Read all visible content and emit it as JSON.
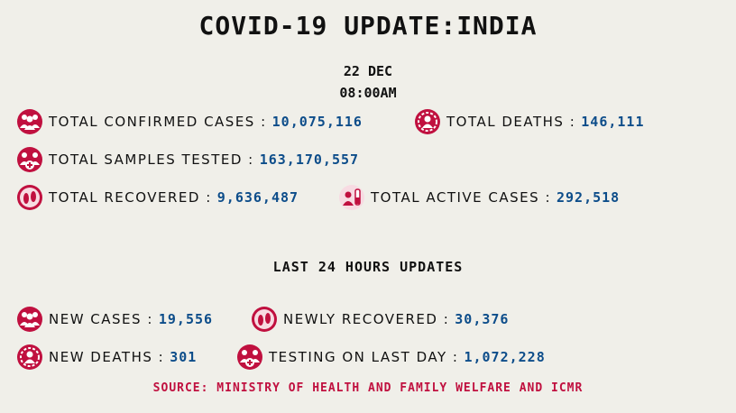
{
  "title": "COVID-19 UPDATE:INDIA",
  "date": "22 DEC",
  "time": "08:00AM",
  "stats": {
    "confirmed": {
      "label": "TOTAL CONFIRMED CASES :",
      "value": "10,075,116",
      "icon": "people-group-icon"
    },
    "deaths": {
      "label": "TOTAL DEATHS :",
      "value": "146,111",
      "icon": "virus-person-icon"
    },
    "samples": {
      "label": "TOTAL SAMPLES TESTED :",
      "value": "163,170,557",
      "icon": "people-medical-icon"
    },
    "recovered": {
      "label": "TOTAL RECOVERED :",
      "value": "9,636,487",
      "icon": "footprints-icon"
    },
    "active": {
      "label": "TOTAL ACTIVE CASES :",
      "value": "292,518",
      "icon": "patient-test-tube-icon"
    }
  },
  "last24": {
    "heading": "LAST 24 HOURS UPDATES",
    "new_cases": {
      "label": "NEW CASES :",
      "value": "19,556",
      "icon": "people-group-icon"
    },
    "newly_recovered": {
      "label": "NEWLY RECOVERED :",
      "value": "30,376",
      "icon": "footprints-icon"
    },
    "new_deaths": {
      "label": "NEW DEATHS :",
      "value": "301",
      "icon": "virus-person-icon"
    },
    "testing": {
      "label": "TESTING ON LAST DAY :",
      "value": "1,072,228",
      "icon": "people-medical-icon"
    }
  },
  "source": "SOURCE: MINISTRY OF HEALTH AND FAMILY WELFARE AND ICMR",
  "colors": {
    "background": "#f0efe9",
    "value": "#0d4d8a",
    "icon": "#c0103f",
    "source": "#c0103f"
  }
}
